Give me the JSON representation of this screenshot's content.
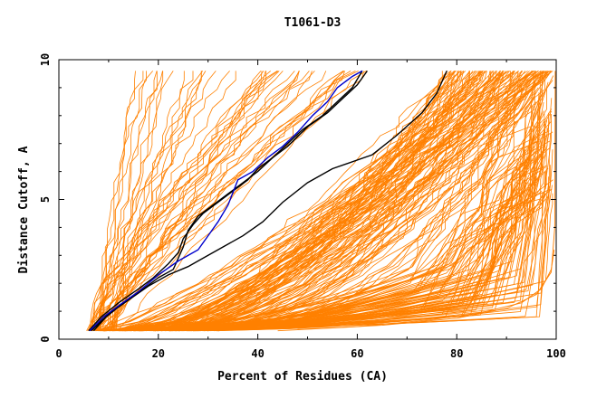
{
  "chart_data": {
    "type": "line",
    "title": "T1061-D3",
    "xlabel": "Percent of Residues (CA)",
    "ylabel": "Distance Cutoff, A",
    "xlim": [
      0,
      100
    ],
    "ylim": [
      0,
      10
    ],
    "x_ticks": [
      "0",
      "20",
      "40",
      "60",
      "80",
      "100"
    ],
    "y_ticks": [
      "0",
      "5",
      "10"
    ],
    "grid": false,
    "legend": "none",
    "colors": {
      "background": "#ffffff",
      "axis": "#000000",
      "bulk": "#ff8000",
      "highlight_black": "#000000",
      "highlight_blue": "#0000cc"
    },
    "highlight_series": [
      {
        "color": "#000000",
        "points": [
          [
            6.0,
            0.3
          ],
          [
            8.5,
            0.8
          ],
          [
            12,
            1.3
          ],
          [
            16,
            1.8
          ],
          [
            19,
            2.2
          ],
          [
            22,
            2.7
          ],
          [
            24,
            3.1
          ],
          [
            25,
            3.6
          ],
          [
            27,
            4.1
          ],
          [
            29,
            4.5
          ],
          [
            32,
            4.9
          ],
          [
            35,
            5.3
          ],
          [
            38,
            5.7
          ],
          [
            40,
            6.1
          ],
          [
            43,
            6.5
          ],
          [
            46,
            6.9
          ],
          [
            50,
            7.6
          ],
          [
            54,
            8.1
          ],
          [
            57,
            8.6
          ],
          [
            60,
            9.1
          ],
          [
            62,
            9.6
          ]
        ]
      },
      {
        "color": "#000000",
        "points": [
          [
            7.0,
            0.3
          ],
          [
            9.5,
            0.8
          ],
          [
            13,
            1.3
          ],
          [
            17,
            1.8
          ],
          [
            20,
            2.2
          ],
          [
            23,
            2.5
          ],
          [
            25,
            3.3
          ],
          [
            26,
            3.9
          ],
          [
            28,
            4.4
          ],
          [
            31,
            4.8
          ],
          [
            34,
            5.2
          ],
          [
            37,
            5.6
          ],
          [
            40,
            6.0
          ],
          [
            43,
            6.5
          ],
          [
            46,
            7.0
          ],
          [
            49,
            7.5
          ],
          [
            53,
            8.0
          ],
          [
            56,
            8.5
          ],
          [
            59,
            9.0
          ],
          [
            61,
            9.6
          ]
        ]
      },
      {
        "color": "#000000",
        "points": [
          [
            6.5,
            0.3
          ],
          [
            10,
            0.9
          ],
          [
            14,
            1.4
          ],
          [
            18,
            1.9
          ],
          [
            22,
            2.3
          ],
          [
            26,
            2.6
          ],
          [
            29,
            2.9
          ],
          [
            33,
            3.3
          ],
          [
            37,
            3.7
          ],
          [
            41,
            4.2
          ],
          [
            45,
            4.9
          ],
          [
            50,
            5.6
          ],
          [
            55,
            6.1
          ],
          [
            63,
            6.6
          ],
          [
            68,
            7.3
          ],
          [
            73,
            8.1
          ],
          [
            76,
            8.8
          ],
          [
            78,
            9.6
          ]
        ]
      },
      {
        "color": "#0000cc",
        "points": [
          [
            6.2,
            0.3
          ],
          [
            9,
            0.8
          ],
          [
            12,
            1.2
          ],
          [
            16,
            1.7
          ],
          [
            20,
            2.3
          ],
          [
            24,
            2.8
          ],
          [
            28,
            3.2
          ],
          [
            32,
            4.2
          ],
          [
            34,
            4.8
          ],
          [
            36,
            5.7
          ],
          [
            39,
            6.0
          ],
          [
            42,
            6.5
          ],
          [
            45,
            6.9
          ],
          [
            48,
            7.4
          ],
          [
            51,
            8.0
          ],
          [
            54,
            8.5
          ],
          [
            56,
            9.0
          ],
          [
            59,
            9.4
          ],
          [
            61,
            9.6
          ]
        ]
      }
    ]
  }
}
